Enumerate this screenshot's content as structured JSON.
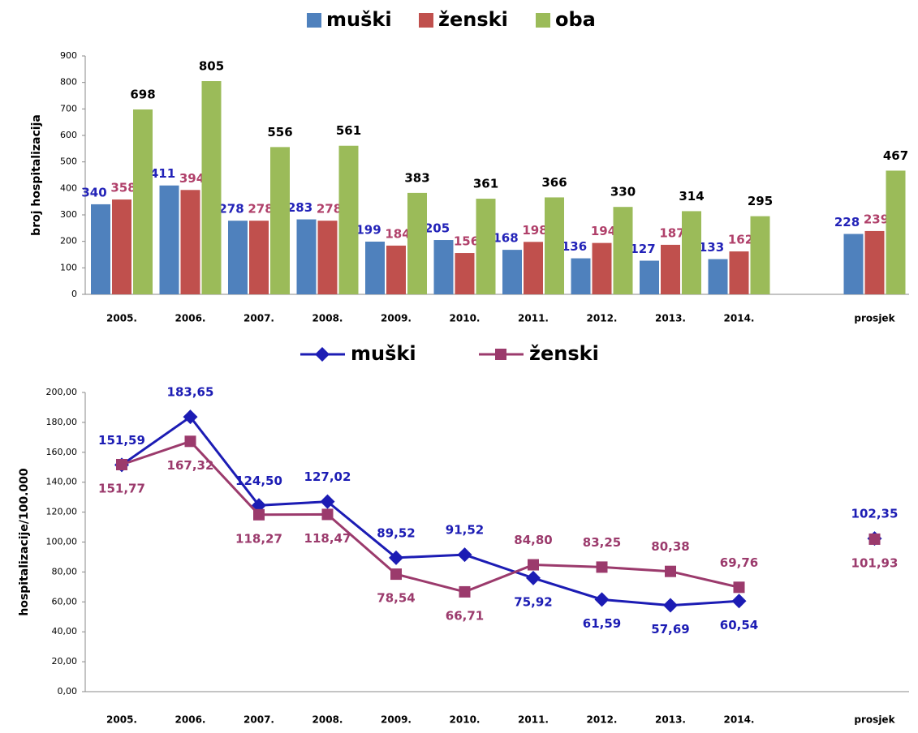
{
  "chart_data": [
    {
      "type": "bar",
      "y_label": "broj hospitalizacija",
      "categories": [
        "2005.",
        "2006.",
        "2007.",
        "2008.",
        "2009.",
        "2010.",
        "2011.",
        "2012.",
        "2013.",
        "2014.",
        null,
        "prosjek"
      ],
      "series": [
        {
          "name": "muški",
          "color": "#4f81bd",
          "label_color": "#2323b8",
          "values": [
            340,
            411,
            278,
            283,
            199,
            205,
            168,
            136,
            127,
            133,
            null,
            228
          ]
        },
        {
          "name": "ženski",
          "color": "#c0504d",
          "label_color": "#b0406a",
          "values": [
            358,
            394,
            278,
            278,
            184,
            156,
            198,
            194,
            187,
            162,
            null,
            239
          ]
        },
        {
          "name": "oba",
          "color": "#9bbb59",
          "label_color": "#000000",
          "values": [
            698,
            805,
            556,
            561,
            383,
            361,
            366,
            330,
            314,
            295,
            null,
            467
          ]
        }
      ],
      "ylim": [
        0,
        900
      ],
      "yticks": [
        0,
        100,
        200,
        300,
        400,
        500,
        600,
        700,
        800,
        900
      ],
      "grid": false
    },
    {
      "type": "line",
      "y_label": "hospitalizacije/100.000",
      "categories": [
        "2005.",
        "2006.",
        "2007.",
        "2008.",
        "2009.",
        "2010.",
        "2011.",
        "2012.",
        "2013.",
        "2014.",
        null,
        "prosjek"
      ],
      "series": [
        {
          "name": "muški",
          "color": "#1c1cb4",
          "marker": "diamond",
          "values": [
            151.59,
            183.65,
            124.5,
            127.02,
            89.52,
            91.52,
            75.92,
            61.59,
            57.69,
            60.54,
            null,
            102.35
          ],
          "value_labels": [
            "151,59",
            "183,65",
            "124,50",
            "127,02",
            "89,52",
            "91,52",
            "75,92",
            "61,59",
            "57,69",
            "60,54",
            null,
            "102,35"
          ]
        },
        {
          "name": "ženski",
          "color": "#9b3a6c",
          "marker": "square",
          "values": [
            151.77,
            167.32,
            118.27,
            118.47,
            78.54,
            66.71,
            84.8,
            83.25,
            80.38,
            69.76,
            null,
            101.93
          ],
          "value_labels": [
            "151,77",
            "167,32",
            "118,27",
            "118,47",
            "78,54",
            "66,71",
            "84,80",
            "83,25",
            "80,38",
            "69,76",
            null,
            "101,93"
          ]
        }
      ],
      "ylim": [
        0,
        200
      ],
      "yticks": [
        {
          "value": 0,
          "label": "0,00"
        },
        {
          "value": 20,
          "label": "20,00"
        },
        {
          "value": 40,
          "label": "40,00"
        },
        {
          "value": 60,
          "label": "60,00"
        },
        {
          "value": 80,
          "label": "80,00"
        },
        {
          "value": 100,
          "label": "100,00"
        },
        {
          "value": 120,
          "label": "120,00"
        },
        {
          "value": 140,
          "label": "140,00"
        },
        {
          "value": 160,
          "label": "160,00"
        },
        {
          "value": 180,
          "label": "180,00"
        },
        {
          "value": 200,
          "label": "200,00"
        }
      ],
      "grid": false
    }
  ]
}
